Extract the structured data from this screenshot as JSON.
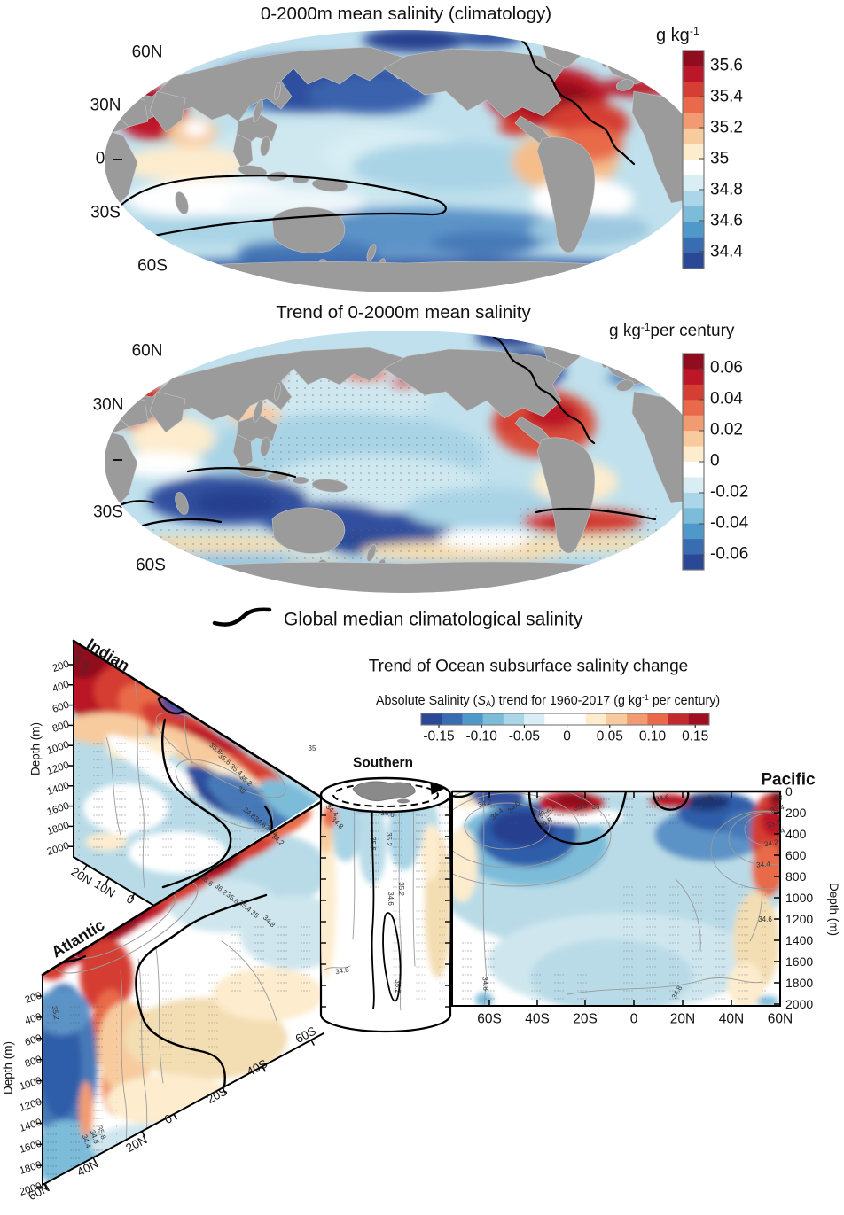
{
  "panel_climatology": {
    "title": "0-2000m mean salinity (climatology)",
    "unit_base": "g kg",
    "unit_sup": "-1",
    "colorbar_ticks": [
      "35.6",
      "35.4",
      "35.2",
      "35",
      "34.8",
      "34.6",
      "34.4"
    ],
    "lat_labels": [
      "60N",
      "30N",
      "0",
      "30S",
      "60S"
    ]
  },
  "panel_trend": {
    "title": "Trend of 0-2000m mean salinity",
    "unit_base": "g kg",
    "unit_sup": "-1",
    "unit_rest": "per century",
    "colorbar_ticks": [
      "0.06",
      "0.04",
      "0.02",
      "0",
      "-0.02",
      "-0.04",
      "-0.06"
    ],
    "lat_labels": [
      "60N",
      "30N",
      "30S",
      "60S"
    ]
  },
  "legend": {
    "label": "Global median climatological salinity"
  },
  "panel_sections": {
    "title": "Trend of Ocean subsurface salinity change",
    "subtitle": {
      "p1": "Absolute Salinity (",
      "sym": "S",
      "sub": "A",
      "p2": ") trend for 1960-2017 (g kg",
      "sup": "-1",
      "p3": " per century)"
    },
    "colorbar_ticks": [
      "-0.15",
      "-0.10",
      "-0.05",
      "0",
      "0.05",
      "0.10",
      "0.15"
    ],
    "depth_axis_label": "Depth (m)",
    "indian": {
      "label": "Indian",
      "depth_ticks": [
        "200",
        "400",
        "600",
        "800",
        "1000",
        "1200",
        "1400",
        "1600",
        "1800",
        "2000"
      ],
      "x_ticks": [
        "20N",
        "10N",
        "0"
      ],
      "contour_labels": [
        "35.8",
        "35.6",
        "35.8",
        "35.6",
        "35.4",
        "35.2",
        "35",
        "34.8",
        "34.6",
        "34.4",
        "34.2",
        "35"
      ]
    },
    "atlantic": {
      "label": "Atlantic",
      "depth_ticks": [
        "200",
        "400",
        "600",
        "800",
        "1000",
        "1200",
        "1400",
        "1600",
        "1800",
        "2000"
      ],
      "x_ticks": [
        "60N",
        "40N",
        "20N",
        "0",
        "20S",
        "40S",
        "60S"
      ],
      "contour_labels": [
        "36.6",
        "36.2",
        "35.6",
        "35.4",
        "35",
        "34.8",
        "35.2",
        "34.4",
        "34.8",
        "35.8"
      ]
    },
    "southern": {
      "label": "Southern",
      "contour_labels": [
        "34.4",
        "34.8",
        "34.6",
        "35.6",
        "35.2",
        "34.6",
        "35.2",
        "34.8",
        "35.2"
      ]
    },
    "pacific": {
      "label": "Pacific",
      "depth_ticks": [
        "0",
        "200",
        "400",
        "600",
        "800",
        "1000",
        "1200",
        "1400",
        "1600",
        "1800",
        "2000"
      ],
      "x_ticks": [
        "60S",
        "40S",
        "20S",
        "0",
        "20N",
        "40N",
        "60N"
      ],
      "contour_labels": [
        "34.2",
        "34.4",
        "34.6",
        "34.8",
        "35",
        "35.4",
        "35.8",
        "36",
        "34.6",
        "35",
        "33",
        "33.4",
        "33.8",
        "34",
        "34.2",
        "34.4",
        "34.6",
        "34.8",
        "34.8"
      ]
    }
  },
  "colors": {
    "strong_red": "#8f0d1e",
    "strong_blue": "#2a4896",
    "white_level": "#ffffff",
    "land_gray": "#9b9b9b"
  },
  "chart_data": [
    {
      "type": "heatmap",
      "variant": "global map, 0-2000m mean salinity climatology",
      "title": "0-2000m mean salinity (climatology)",
      "units": "g kg-1",
      "colorbar_ticks": [
        35.6,
        35.4,
        35.2,
        35,
        34.8,
        34.6,
        34.4
      ],
      "colorbar_range": [
        34.3,
        35.7
      ],
      "lat_labels": [
        "60N",
        "30N",
        "0",
        "30S",
        "60S"
      ],
      "overlay": "black contour = global median climatological salinity",
      "regional_values": {
        "subtropical North Atlantic": 35.6,
        "Mediterranean outflow": 35.6,
        "Arabian Sea": 35.5,
        "North Pacific": 34.3,
        "tropical Pacific": 34.7,
        "Southern Ocean": 34.7,
        "Bay of Bengal": 35.0,
        "South Indian subtropics": 35.0,
        "Arctic": 34.4
      }
    },
    {
      "type": "heatmap",
      "variant": "global map, 0-2000m salinity trend",
      "title": "Trend of 0-2000m mean salinity",
      "units": "g kg-1 per century",
      "colorbar_ticks": [
        0.06,
        0.04,
        0.02,
        0,
        -0.02,
        -0.04,
        -0.06
      ],
      "colorbar_range": [
        -0.07,
        0.07
      ],
      "lat_labels": [
        "60N",
        "30N",
        "30S",
        "60S"
      ],
      "overlay": "stippling = low significance; black contour = global median climatological salinity",
      "regional_values": {
        "subtropical Atlantic": 0.04,
        "subpolar North Atlantic": -0.06,
        "western/central Pacific": -0.04,
        "Arabian Sea": 0.04,
        "south Indian Ocean": -0.04,
        "Southern Ocean": -0.01
      }
    },
    {
      "type": "heatmap",
      "variant": "3D ocean depth sections, 0-2000 m",
      "title": "Trend of Ocean subsurface salinity change",
      "subtitle": "Absolute Salinity (SA) trend for 1960-2017 (g kg-1 per century)",
      "colorbar_ticks": [
        -0.15,
        -0.1,
        -0.05,
        0,
        0.05,
        0.1,
        0.15
      ],
      "sections": {
        "Indian": {
          "x_ticks": [
            "20N",
            "10N",
            "0"
          ],
          "depth_ticks_m": [
            200,
            400,
            600,
            800,
            1000,
            1200,
            1400,
            1600,
            1800,
            2000
          ],
          "pattern": "salty (red) upper layer 0-800 m near 20N thinning toward equator; freshening (blue) beneath and toward low latitudes"
        },
        "Atlantic": {
          "x_ticks": [
            "60N",
            "40N",
            "20N",
            "0",
            "20S",
            "40S",
            "60S"
          ],
          "depth_ticks_m": [
            200,
            400,
            600,
            800,
            1000,
            1200,
            1400,
            1600,
            1800,
            2000
          ],
          "pattern": "strong salinification (red) of subtropical upper ocean ~0-40N reaching ~1200 m; freshening (blue) at 40-60N full depth; weak salty (tan) mid-depth in South Atlantic"
        },
        "Southern": {
          "pattern": "weak near-surface freshening around Antarctica; mean salinity contours 34.2-35.6 on cylinder"
        },
        "Pacific": {
          "x_ticks": [
            "60S",
            "40S",
            "20S",
            "0",
            "20N",
            "40N",
            "60N"
          ],
          "depth_ticks_m": [
            0,
            200,
            400,
            600,
            800,
            1000,
            1200,
            1400,
            1600,
            1800,
            2000
          ],
          "pattern": "broad freshening (blue) of upper 600 m, strongest 50S-20S and 20-50N; salty surface patches near equator (35.8-36 contours); salty northwest margin (33-34.6 contours)"
        }
      },
      "contour_labels_g_kg": [
        33,
        33.4,
        33.8,
        34,
        34.2,
        34.4,
        34.6,
        34.8,
        35,
        35.2,
        35.4,
        35.6,
        35.8,
        36,
        36.2,
        36.6
      ],
      "overlay": "gray contours = mean salinity; thick black contour = global median climatological salinity; stippling = low significance"
    }
  ]
}
